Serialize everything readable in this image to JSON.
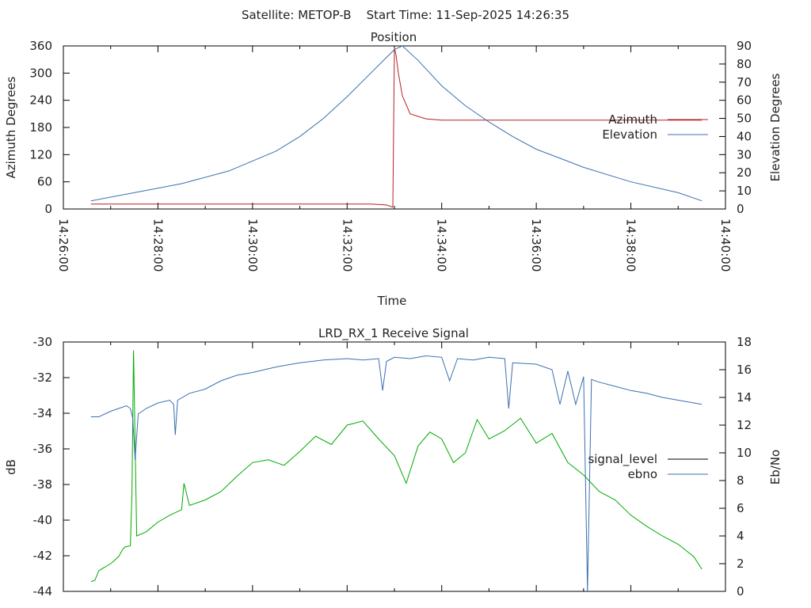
{
  "page_title": "Satellite: METOP-B    Start Time: 11-Sep-2025 14:26:35",
  "chart_data": [
    {
      "type": "line",
      "title": "Position",
      "xlabel": "Time",
      "ylabel": "Azimuth Degrees",
      "y2label": "Elevation Degrees",
      "x_ticks": [
        "14:26:00",
        "14:28:00",
        "14:30:00",
        "14:32:00",
        "14:34:00",
        "14:36:00",
        "14:38:00",
        "14:40:00"
      ],
      "y_ticks": [
        0,
        60,
        120,
        180,
        240,
        300,
        360
      ],
      "y2_ticks": [
        0,
        10,
        20,
        30,
        40,
        50,
        60,
        70,
        80,
        90
      ],
      "xlim": [
        "14:26:00",
        "14:40:00"
      ],
      "ylim": [
        0,
        360
      ],
      "y2lim": [
        0,
        90
      ],
      "legend_position": "right",
      "grid": false,
      "series": [
        {
          "name": "Azimuth",
          "axis": "y",
          "color": "#b22222",
          "x": [
            "14:26:35",
            "14:28:00",
            "14:30:00",
            "14:32:00",
            "14:32:30",
            "14:32:50",
            "14:32:58",
            "14:33:00",
            "14:33:02",
            "14:33:05",
            "14:33:10",
            "14:33:20",
            "14:33:40",
            "14:34:00",
            "14:36:00",
            "14:38:00",
            "14:39:30"
          ],
          "values": [
            11,
            11,
            11,
            11,
            11,
            9,
            4,
            356,
            340,
            300,
            250,
            210,
            199,
            196,
            196,
            196,
            196
          ]
        },
        {
          "name": "Elevation",
          "axis": "y2",
          "color": "#3a6fb0",
          "x": [
            "14:26:35",
            "14:27:30",
            "14:28:30",
            "14:29:30",
            "14:30:30",
            "14:31:00",
            "14:31:30",
            "14:32:00",
            "14:32:30",
            "14:33:00",
            "14:33:10",
            "14:33:30",
            "14:34:00",
            "14:34:30",
            "14:35:00",
            "14:35:30",
            "14:36:00",
            "14:36:30",
            "14:37:00",
            "14:38:00",
            "14:39:00",
            "14:39:30"
          ],
          "values": [
            4.5,
            9,
            14,
            21,
            32,
            40,
            50,
            62,
            75,
            88,
            90,
            82,
            68,
            57,
            48,
            40,
            33,
            28,
            23,
            15,
            9,
            4.5
          ]
        }
      ]
    },
    {
      "type": "line",
      "title": "LRD_RX_1 Receive Signal",
      "ylabel": "dB",
      "y2label": "Eb/No",
      "y_ticks": [
        -44,
        -42,
        -40,
        -38,
        -36,
        -34,
        -32,
        -30
      ],
      "y2_ticks": [
        0,
        2,
        4,
        6,
        8,
        10,
        12,
        14,
        16,
        18
      ],
      "xlim": [
        "14:26:00",
        "14:40:00"
      ],
      "ylim": [
        -44,
        -30
      ],
      "y2lim": [
        0,
        18
      ],
      "legend_position": "right",
      "grid": false,
      "series": [
        {
          "name": "signal_level",
          "legend_color": "#000000",
          "color": "#00aa00",
          "axis": "y2",
          "x": [
            "14:26:35",
            "14:26:40",
            "14:26:45",
            "14:27:00",
            "14:27:10",
            "14:27:15",
            "14:27:18",
            "14:27:25",
            "14:27:27",
            "14:27:29",
            "14:27:33",
            "14:27:45",
            "14:28:00",
            "14:28:15",
            "14:28:30",
            "14:28:33",
            "14:28:40",
            "14:29:00",
            "14:29:20",
            "14:29:40",
            "14:30:00",
            "14:30:20",
            "14:30:40",
            "14:31:00",
            "14:31:20",
            "14:31:40",
            "14:32:00",
            "14:32:20",
            "14:32:40",
            "14:33:00",
            "14:33:15",
            "14:33:30",
            "14:33:45",
            "14:34:00",
            "14:34:15",
            "14:34:30",
            "14:34:45",
            "14:35:00",
            "14:35:20",
            "14:35:40",
            "14:36:00",
            "14:36:20",
            "14:36:40",
            "14:37:00",
            "14:37:20",
            "14:37:40",
            "14:38:00",
            "14:38:20",
            "14:38:40",
            "14:39:00",
            "14:39:20",
            "14:39:30"
          ],
          "values": [
            0.7,
            0.8,
            1.5,
            2.0,
            2.5,
            3.0,
            3.2,
            3.3,
            7.0,
            17.4,
            4.0,
            4.3,
            5.0,
            5.5,
            5.9,
            7.8,
            6.2,
            6.6,
            7.2,
            8.3,
            9.3,
            9.5,
            9.1,
            10.1,
            11.2,
            10.6,
            12.0,
            12.3,
            11.0,
            9.8,
            7.8,
            10.5,
            11.5,
            11.0,
            9.3,
            10.0,
            12.4,
            11.0,
            11.6,
            12.5,
            10.7,
            11.4,
            9.3,
            8.4,
            7.2,
            6.6,
            5.5,
            4.7,
            4.0,
            3.4,
            2.5,
            1.6
          ]
        },
        {
          "name": "ebno",
          "color": "#3a6fb0",
          "axis": "y2",
          "x": [
            "14:26:35",
            "14:26:45",
            "14:27:00",
            "14:27:10",
            "14:27:20",
            "14:27:25",
            "14:27:28",
            "14:27:31",
            "14:27:35",
            "14:27:45",
            "14:28:00",
            "14:28:15",
            "14:28:20",
            "14:28:22",
            "14:28:25",
            "14:28:40",
            "14:29:00",
            "14:29:20",
            "14:29:40",
            "14:30:00",
            "14:30:30",
            "14:31:00",
            "14:31:30",
            "14:32:00",
            "14:32:20",
            "14:32:40",
            "14:32:45",
            "14:32:50",
            "14:33:00",
            "14:33:20",
            "14:33:40",
            "14:34:00",
            "14:34:10",
            "14:34:20",
            "14:34:40",
            "14:35:00",
            "14:35:20",
            "14:35:25",
            "14:35:30",
            "14:36:00",
            "14:36:20",
            "14:36:30",
            "14:36:40",
            "14:36:50",
            "14:37:00",
            "14:37:05",
            "14:37:10",
            "14:37:20",
            "14:37:40",
            "14:38:00",
            "14:38:20",
            "14:38:40",
            "14:39:00",
            "14:39:20",
            "14:39:30"
          ],
          "values": [
            12.6,
            12.6,
            13.0,
            13.2,
            13.4,
            13.2,
            12.5,
            9.5,
            12.8,
            13.2,
            13.6,
            13.8,
            13.5,
            11.3,
            13.8,
            14.3,
            14.6,
            15.2,
            15.6,
            15.8,
            16.2,
            16.5,
            16.7,
            16.8,
            16.7,
            16.8,
            14.5,
            16.6,
            16.9,
            16.8,
            17.0,
            16.9,
            15.2,
            16.8,
            16.7,
            16.9,
            16.8,
            13.2,
            16.5,
            16.4,
            16.0,
            13.5,
            15.9,
            13.5,
            15.5,
            0.0,
            15.3,
            15.1,
            14.8,
            14.5,
            14.3,
            14.0,
            13.8,
            13.6,
            13.5
          ]
        }
      ]
    }
  ]
}
